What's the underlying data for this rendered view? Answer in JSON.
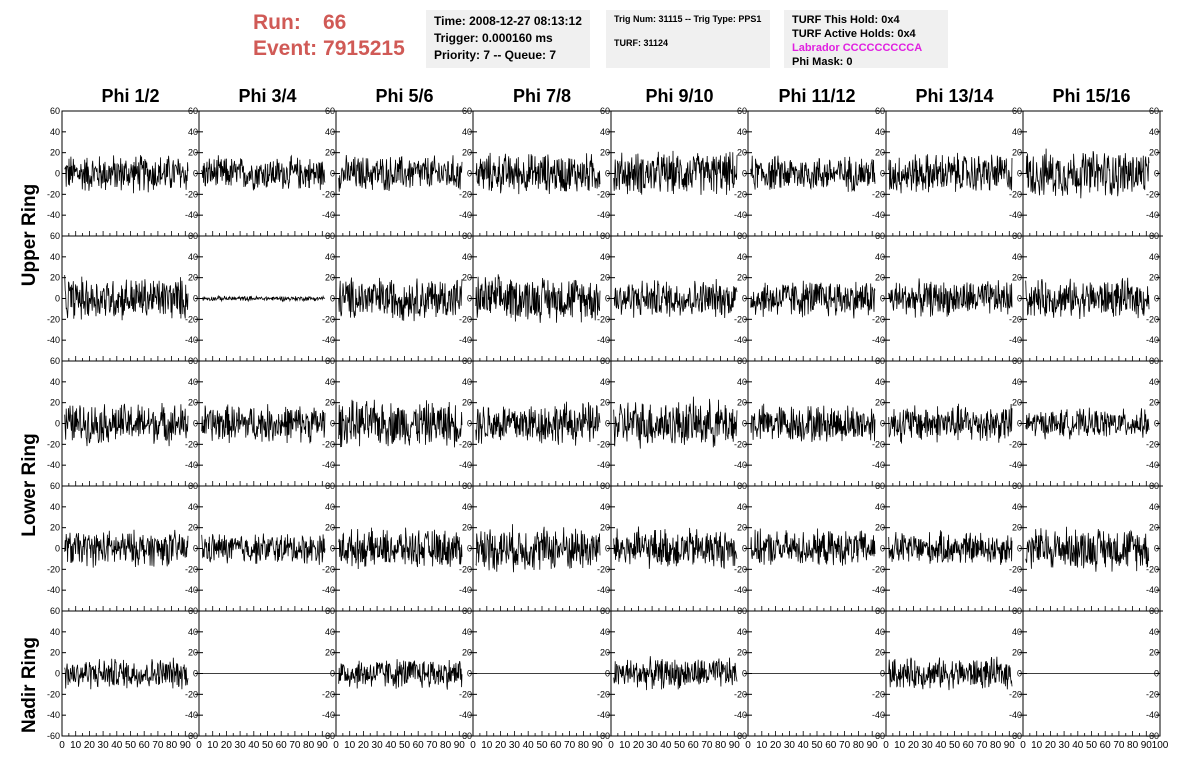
{
  "header": {
    "run_label": "Run:",
    "run_value": "66",
    "event_label": "Event:",
    "event_value": "7915215"
  },
  "time_box": {
    "time": "Time: 2008-12-27 08:13:12",
    "trigger": "Trigger: 0.000160 ms",
    "priority": "Priority: 7 -- Queue: 7"
  },
  "trig_box": {
    "trig": "Trig Num: 31115 -- Trig Type: PPS1",
    "turf": "TURF: 31124"
  },
  "turf_box": {
    "this_hold": "TURF This Hold: 0x4",
    "active_holds": "TURF Active Holds: 0x4",
    "labrador": "Labrador CCCCCCCCCA",
    "phi_mask": "Phi Mask: 0"
  },
  "colors": {
    "title": "#d05a56",
    "labrador": "#e020e0",
    "trace": "#000000",
    "info_bg": "#f0f0f0"
  },
  "columns": [
    "Phi 1/2",
    "Phi 3/4",
    "Phi 5/6",
    "Phi 7/8",
    "Phi 9/10",
    "Phi 11/12",
    "Phi 13/14",
    "Phi 15/16"
  ],
  "rows": [
    "Upper Ring",
    "Lower Ring",
    "Nadir Ring"
  ],
  "chart_data": {
    "type": "line",
    "xlim": [
      0,
      100
    ],
    "ylim": [
      -60,
      60
    ],
    "xticks": [
      "0",
      "10",
      "20",
      "30",
      "40",
      "50",
      "60",
      "70",
      "80",
      "90",
      "100"
    ],
    "yticks": [
      "60",
      "40",
      "20",
      "0",
      "-20",
      "-40",
      "-60"
    ],
    "grid": false,
    "panels_rows": 5,
    "panels_cols": 8,
    "amplitudes": [
      [
        16,
        14,
        15,
        17,
        18,
        15,
        17,
        20
      ],
      [
        18,
        2,
        18,
        19,
        16,
        16,
        15,
        16
      ],
      [
        17,
        16,
        19,
        18,
        20,
        16,
        16,
        12
      ],
      [
        15,
        13,
        16,
        19,
        17,
        15,
        14,
        18
      ],
      [
        13,
        0,
        13,
        0,
        13,
        0,
        13,
        0
      ]
    ]
  }
}
